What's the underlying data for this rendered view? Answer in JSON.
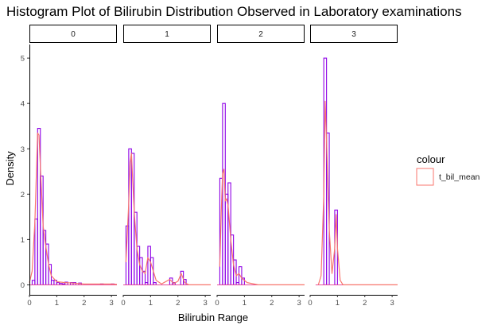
{
  "chart_data": {
    "type": "histogram",
    "title": "Histogram Plot of Bilirubin Distribution Observed in Laboratory examinations",
    "xlabel": "Bilirubin Range",
    "ylabel": "Density",
    "xlim": [
      0,
      3.2
    ],
    "ylim": [
      0,
      5.3
    ],
    "x_ticks": [
      "0",
      "1",
      "2",
      "3"
    ],
    "y_ticks": [
      "0",
      "1",
      "2",
      "3",
      "4",
      "5"
    ],
    "bin_width": 0.1,
    "bar_outline_color": "#8e00e6",
    "density_line_color": "#f8766d",
    "grid": false,
    "legend": {
      "title": "colour",
      "placement": "right",
      "entries": [
        {
          "label": "t_bil_mean",
          "color": "#f8766d"
        }
      ]
    },
    "facets": [
      {
        "label": "0",
        "bins": [
          [
            0.1,
            0.1
          ],
          [
            0.2,
            1.45
          ],
          [
            0.3,
            3.45
          ],
          [
            0.4,
            2.4
          ],
          [
            0.5,
            1.2
          ],
          [
            0.6,
            0.9
          ],
          [
            0.7,
            0.45
          ],
          [
            0.8,
            0.1
          ],
          [
            0.9,
            0.1
          ],
          [
            1.0,
            0.05
          ],
          [
            1.1,
            0.03
          ],
          [
            1.2,
            0.02
          ],
          [
            1.3,
            0.06
          ],
          [
            1.5,
            0.05
          ],
          [
            1.6,
            0.05
          ],
          [
            1.8,
            0.04
          ],
          [
            2.6,
            0.02
          ],
          [
            3.0,
            0.02
          ]
        ],
        "density": [
          [
            0,
            0.05
          ],
          [
            0.1,
            0.3
          ],
          [
            0.2,
            1.4
          ],
          [
            0.3,
            3.35
          ],
          [
            0.35,
            3.3
          ],
          [
            0.4,
            2.6
          ],
          [
            0.5,
            1.3
          ],
          [
            0.6,
            0.85
          ],
          [
            0.7,
            0.45
          ],
          [
            0.8,
            0.2
          ],
          [
            1.0,
            0.07
          ],
          [
            1.3,
            0.05
          ],
          [
            1.6,
            0.04
          ],
          [
            2.0,
            0.02
          ],
          [
            2.5,
            0.02
          ],
          [
            3.0,
            0.02
          ],
          [
            3.2,
            0.01
          ]
        ]
      },
      {
        "label": "1",
        "bins": [
          [
            0.1,
            1.3
          ],
          [
            0.2,
            3.0
          ],
          [
            0.3,
            2.9
          ],
          [
            0.4,
            1.6
          ],
          [
            0.5,
            0.85
          ],
          [
            0.6,
            0.6
          ],
          [
            0.7,
            0.3
          ],
          [
            0.8,
            0.05
          ],
          [
            0.9,
            0.85
          ],
          [
            1.0,
            0.6
          ],
          [
            1.1,
            0.05
          ],
          [
            1.7,
            0.15
          ],
          [
            1.8,
            0.05
          ],
          [
            2.1,
            0.3
          ],
          [
            2.2,
            0.12
          ]
        ],
        "density": [
          [
            0.1,
            0.5
          ],
          [
            0.2,
            1.8
          ],
          [
            0.25,
            2.7
          ],
          [
            0.3,
            2.9
          ],
          [
            0.4,
            1.6
          ],
          [
            0.5,
            0.8
          ],
          [
            0.6,
            0.45
          ],
          [
            0.7,
            0.3
          ],
          [
            0.8,
            0.25
          ],
          [
            0.9,
            0.6
          ],
          [
            1.0,
            0.5
          ],
          [
            1.2,
            0.1
          ],
          [
            1.4,
            0.02
          ],
          [
            1.7,
            0.12
          ],
          [
            1.85,
            0.03
          ],
          [
            2.0,
            0.08
          ],
          [
            2.12,
            0.25
          ],
          [
            2.25,
            0.05
          ],
          [
            2.4,
            0.0
          ],
          [
            3.2,
            0.0
          ]
        ]
      },
      {
        "label": "2",
        "bins": [
          [
            0.1,
            2.35
          ],
          [
            0.2,
            4.0
          ],
          [
            0.3,
            2.0
          ],
          [
            0.4,
            2.25
          ],
          [
            0.5,
            1.1
          ],
          [
            0.6,
            0.55
          ],
          [
            0.7,
            0.05
          ],
          [
            0.8,
            0.4
          ],
          [
            0.9,
            0.15
          ]
        ],
        "density": [
          [
            0.1,
            0.4
          ],
          [
            0.15,
            1.6
          ],
          [
            0.2,
            2.45
          ],
          [
            0.25,
            2.55
          ],
          [
            0.3,
            1.85
          ],
          [
            0.35,
            1.9
          ],
          [
            0.4,
            1.75
          ],
          [
            0.5,
            1.0
          ],
          [
            0.6,
            0.45
          ],
          [
            0.7,
            0.2
          ],
          [
            0.8,
            0.25
          ],
          [
            0.9,
            0.15
          ],
          [
            1.1,
            0.05
          ],
          [
            1.5,
            0.0
          ],
          [
            3.2,
            0.0
          ]
        ]
      },
      {
        "label": "3",
        "bins": [
          [
            0.5,
            5.0
          ],
          [
            0.6,
            3.35
          ],
          [
            0.9,
            1.65
          ]
        ],
        "density": [
          [
            0.3,
            0.0
          ],
          [
            0.4,
            0.2
          ],
          [
            0.5,
            2.0
          ],
          [
            0.55,
            4.05
          ],
          [
            0.6,
            3.2
          ],
          [
            0.7,
            1.2
          ],
          [
            0.8,
            0.25
          ],
          [
            0.9,
            0.8
          ],
          [
            0.95,
            1.55
          ],
          [
            1.0,
            0.8
          ],
          [
            1.1,
            0.1
          ],
          [
            1.2,
            0.0
          ],
          [
            3.2,
            0.0
          ]
        ]
      }
    ]
  }
}
